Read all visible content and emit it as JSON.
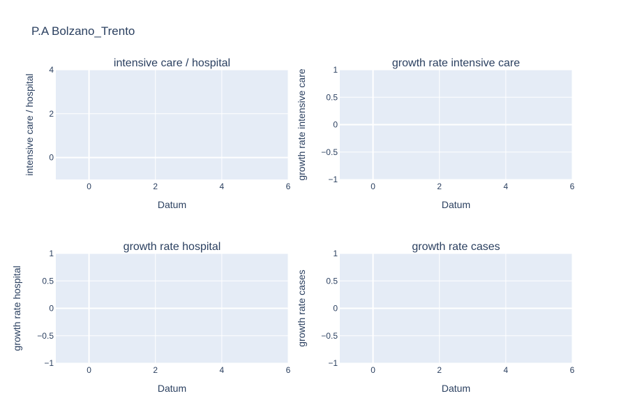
{
  "figure": {
    "title": "P.A Bolzano_Trento"
  },
  "colors": {
    "plot_bg": "#e5ecf6",
    "grid": "#ffffff",
    "text": "#2a3f5f"
  },
  "chart_data": [
    {
      "type": "line",
      "title": "intensive care / hospital",
      "xlabel": "Datum",
      "ylabel": "intensive care / hospital",
      "xlim": [
        -1,
        6
      ],
      "ylim": [
        -1,
        4
      ],
      "xticks": [
        0,
        2,
        4,
        6
      ],
      "yticks": [
        0,
        2,
        4
      ],
      "ytick_labels": [
        "0",
        "2",
        "4"
      ],
      "series": []
    },
    {
      "type": "line",
      "title": "growth rate intensive care",
      "xlabel": "Datum",
      "ylabel": "growth rate intensive care",
      "xlim": [
        -1,
        6
      ],
      "ylim": [
        -1,
        1
      ],
      "xticks": [
        0,
        2,
        4,
        6
      ],
      "yticks": [
        -1,
        -0.5,
        0,
        0.5,
        1
      ],
      "ytick_labels": [
        "−1",
        "−0.5",
        "0",
        "0.5",
        "1"
      ],
      "series": []
    },
    {
      "type": "line",
      "title": "growth rate hospital",
      "xlabel": "Datum",
      "ylabel": "growth rate hospital",
      "xlim": [
        -1,
        6
      ],
      "ylim": [
        -1,
        1
      ],
      "xticks": [
        0,
        2,
        4,
        6
      ],
      "yticks": [
        -1,
        -0.5,
        0,
        0.5,
        1
      ],
      "ytick_labels": [
        "−1",
        "−0.5",
        "0",
        "0.5",
        "1"
      ],
      "series": []
    },
    {
      "type": "line",
      "title": "growth rate cases",
      "xlabel": "Datum",
      "ylabel": "growth rate cases",
      "xlim": [
        -1,
        6
      ],
      "ylim": [
        -1,
        1
      ],
      "xticks": [
        0,
        2,
        4,
        6
      ],
      "yticks": [
        -1,
        -0.5,
        0,
        0.5,
        1
      ],
      "ytick_labels": [
        "−1",
        "−0.5",
        "0",
        "0.5",
        "1"
      ],
      "series": []
    }
  ]
}
